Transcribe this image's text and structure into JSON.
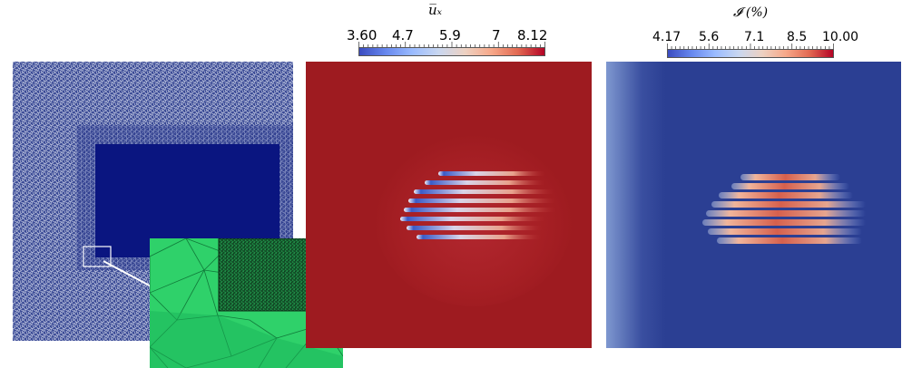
{
  "velocity_colorbar": {
    "title": "u̅ₓ",
    "ticks": [
      "3.60",
      "4.7",
      "5.9",
      "7",
      "8.12"
    ]
  },
  "turbulence_colorbar": {
    "title": "𝓘 (%)",
    "ticks": [
      "4.17",
      "5.6",
      "7.1",
      "8.5",
      "10.00"
    ]
  },
  "colors": {
    "mesh_background": "#2f3f8f",
    "mesh_dense": "#0a1a8a",
    "inset_green": "#2ecf6a",
    "velocity_field": "#9e1b20",
    "turbulence_field": "#2b3f93"
  }
}
